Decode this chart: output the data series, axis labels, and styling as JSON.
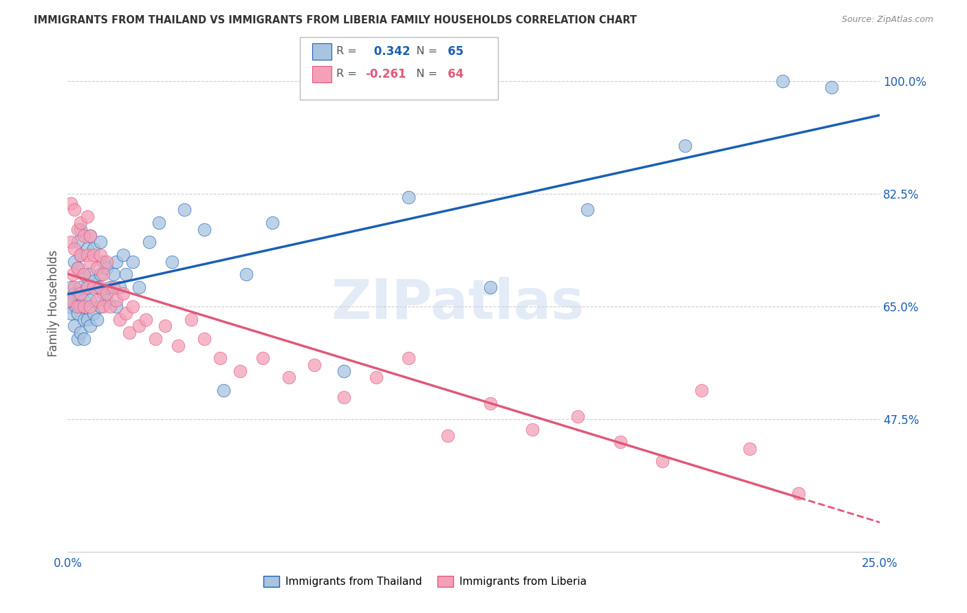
{
  "title": "IMMIGRANTS FROM THAILAND VS IMMIGRANTS FROM LIBERIA FAMILY HOUSEHOLDS CORRELATION CHART",
  "source": "Source: ZipAtlas.com",
  "ylabel": "Family Households",
  "legend_label1": "Immigrants from Thailand",
  "legend_label2": "Immigrants from Liberia",
  "r1": 0.342,
  "n1": 65,
  "r2": -0.261,
  "n2": 64,
  "color1": "#a8c4e0",
  "color2": "#f4a0b8",
  "line_color1": "#1a5fb4",
  "line_color2": "#e05878",
  "xmin": 0.0,
  "xmax": 0.25,
  "ymin": 0.27,
  "ymax": 1.04,
  "yticks": [
    0.475,
    0.65,
    0.825,
    1.0
  ],
  "ytick_labels": [
    "47.5%",
    "65.0%",
    "82.5%",
    "100.0%"
  ],
  "xticks": [
    0.0,
    0.05,
    0.1,
    0.15,
    0.2,
    0.25
  ],
  "xtick_labels": [
    "0.0%",
    "",
    "",
    "",
    "",
    "25.0%"
  ],
  "watermark": "ZIPatlas",
  "background_color": "#ffffff",
  "thailand_x": [
    0.0005,
    0.001,
    0.001,
    0.0015,
    0.002,
    0.002,
    0.002,
    0.0025,
    0.003,
    0.003,
    0.003,
    0.003,
    0.003,
    0.004,
    0.004,
    0.004,
    0.004,
    0.004,
    0.005,
    0.005,
    0.005,
    0.005,
    0.006,
    0.006,
    0.006,
    0.007,
    0.007,
    0.007,
    0.007,
    0.008,
    0.008,
    0.008,
    0.009,
    0.009,
    0.01,
    0.01,
    0.01,
    0.011,
    0.011,
    0.012,
    0.012,
    0.013,
    0.014,
    0.015,
    0.015,
    0.016,
    0.017,
    0.018,
    0.02,
    0.022,
    0.025,
    0.028,
    0.032,
    0.036,
    0.042,
    0.048,
    0.055,
    0.063,
    0.085,
    0.105,
    0.13,
    0.16,
    0.19,
    0.22,
    0.235
  ],
  "thailand_y": [
    0.65,
    0.64,
    0.68,
    0.66,
    0.62,
    0.67,
    0.72,
    0.65,
    0.6,
    0.64,
    0.67,
    0.71,
    0.75,
    0.61,
    0.65,
    0.68,
    0.73,
    0.77,
    0.6,
    0.63,
    0.66,
    0.7,
    0.63,
    0.68,
    0.74,
    0.62,
    0.66,
    0.7,
    0.76,
    0.64,
    0.69,
    0.74,
    0.63,
    0.68,
    0.65,
    0.7,
    0.75,
    0.67,
    0.72,
    0.66,
    0.71,
    0.68,
    0.7,
    0.65,
    0.72,
    0.68,
    0.73,
    0.7,
    0.72,
    0.68,
    0.75,
    0.78,
    0.72,
    0.8,
    0.77,
    0.52,
    0.7,
    0.78,
    0.55,
    0.82,
    0.68,
    0.8,
    0.9,
    1.0,
    0.99
  ],
  "liberia_x": [
    0.0005,
    0.001,
    0.001,
    0.0015,
    0.002,
    0.002,
    0.002,
    0.003,
    0.003,
    0.003,
    0.004,
    0.004,
    0.004,
    0.005,
    0.005,
    0.005,
    0.006,
    0.006,
    0.006,
    0.007,
    0.007,
    0.007,
    0.008,
    0.008,
    0.009,
    0.009,
    0.01,
    0.01,
    0.011,
    0.011,
    0.012,
    0.012,
    0.013,
    0.014,
    0.015,
    0.016,
    0.017,
    0.018,
    0.019,
    0.02,
    0.022,
    0.024,
    0.027,
    0.03,
    0.034,
    0.038,
    0.042,
    0.047,
    0.053,
    0.06,
    0.068,
    0.076,
    0.085,
    0.095,
    0.105,
    0.117,
    0.13,
    0.143,
    0.157,
    0.17,
    0.183,
    0.195,
    0.21,
    0.225
  ],
  "liberia_y": [
    0.66,
    0.75,
    0.81,
    0.7,
    0.68,
    0.74,
    0.8,
    0.65,
    0.71,
    0.77,
    0.67,
    0.73,
    0.78,
    0.65,
    0.7,
    0.76,
    0.68,
    0.73,
    0.79,
    0.65,
    0.72,
    0.76,
    0.68,
    0.73,
    0.66,
    0.71,
    0.68,
    0.73,
    0.65,
    0.7,
    0.67,
    0.72,
    0.65,
    0.68,
    0.66,
    0.63,
    0.67,
    0.64,
    0.61,
    0.65,
    0.62,
    0.63,
    0.6,
    0.62,
    0.59,
    0.63,
    0.6,
    0.57,
    0.55,
    0.57,
    0.54,
    0.56,
    0.51,
    0.54,
    0.57,
    0.45,
    0.5,
    0.46,
    0.48,
    0.44,
    0.41,
    0.52,
    0.43,
    0.36
  ]
}
